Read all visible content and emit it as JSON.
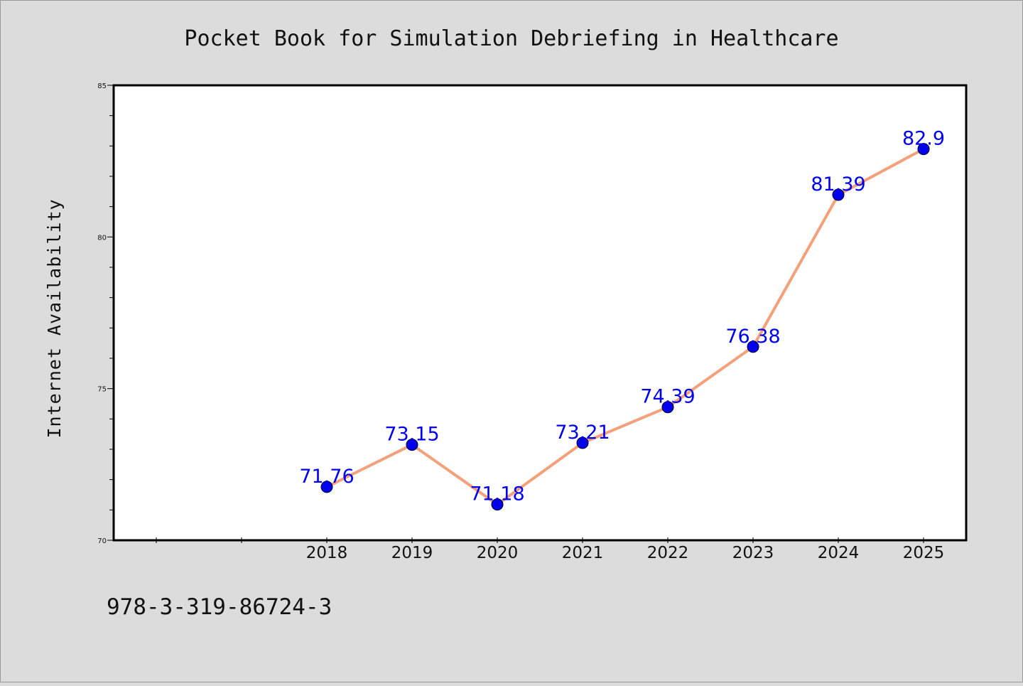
{
  "chart_data": {
    "type": "line",
    "title": "Pocket Book for Simulation Debriefing in Healthcare",
    "xlabel": "",
    "ylabel": "Internet Availability",
    "categories": [
      "2018",
      "2019",
      "2020",
      "2021",
      "2022",
      "2023",
      "2024",
      "2025"
    ],
    "x_extra_ticks": 2,
    "values": [
      71.76,
      73.15,
      71.18,
      73.21,
      74.39,
      76.38,
      81.39,
      82.9
    ],
    "data_labels": [
      "71.76",
      "73.15",
      "71.18",
      "73.21",
      "74.39",
      "76.38",
      "81.39",
      "82.9"
    ],
    "ylim": [
      70,
      85
    ],
    "y_major_ticks": [
      70,
      75,
      80,
      85
    ],
    "y_minor_step": 1,
    "grid": false,
    "legend": "none",
    "line_color": "#f4a07a",
    "marker_color": "#0000ee",
    "label_color": "#0000ee"
  },
  "footer": {
    "isbn": "978-3-319-86724-3"
  }
}
